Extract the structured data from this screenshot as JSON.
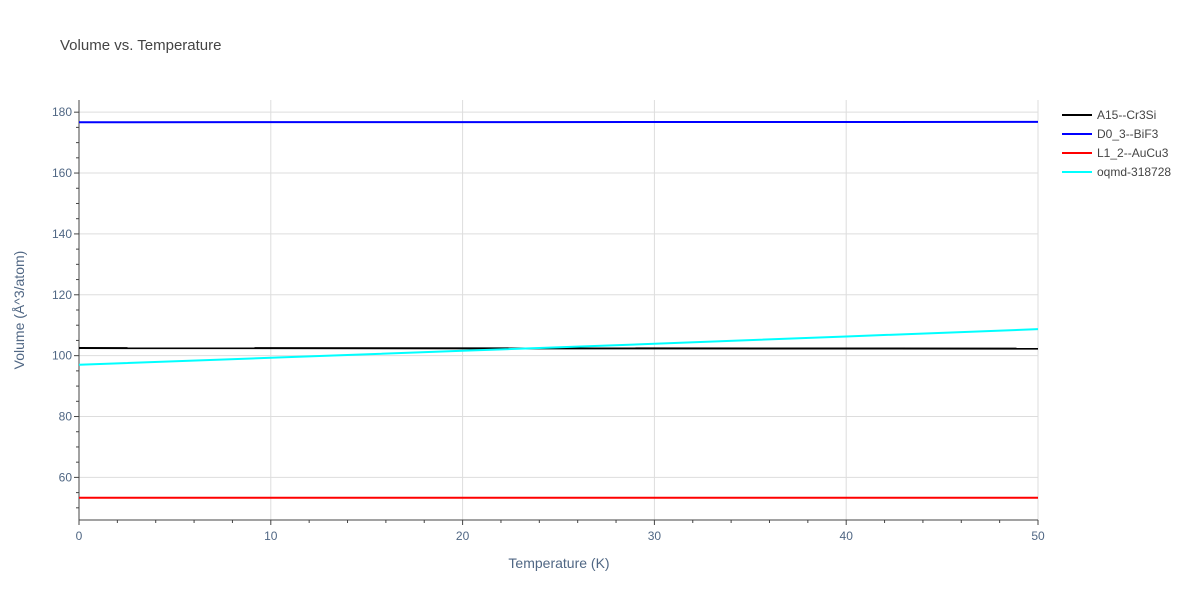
{
  "chart_data": {
    "type": "line",
    "title": "Volume vs. Temperature",
    "xlabel": "Temperature (K)",
    "ylabel": "Volume (Å^3/atom)",
    "xlim": [
      0,
      50
    ],
    "ylim": [
      46,
      184
    ],
    "xticks": [
      0,
      10,
      20,
      30,
      40,
      50
    ],
    "yticks": [
      60,
      80,
      100,
      120,
      140,
      160,
      180
    ],
    "grid": true,
    "legend_position": "top-right",
    "series": [
      {
        "name": "A15--Cr3Si",
        "color": "#000000",
        "x": [
          0,
          50
        ],
        "y": [
          102.5,
          102.3
        ]
      },
      {
        "name": "D0_3--BiF3",
        "color": "#0000ff",
        "x": [
          0,
          50
        ],
        "y": [
          176.7,
          176.8
        ]
      },
      {
        "name": "L1_2--AuCu3",
        "color": "#ff0000",
        "x": [
          0,
          50
        ],
        "y": [
          53.3,
          53.3
        ]
      },
      {
        "name": "oqmd-318728",
        "color": "#00ffff",
        "x": [
          0,
          10,
          20,
          30,
          40,
          50
        ],
        "y": [
          97.0,
          99.3,
          101.6,
          103.9,
          106.3,
          108.7
        ]
      }
    ]
  }
}
